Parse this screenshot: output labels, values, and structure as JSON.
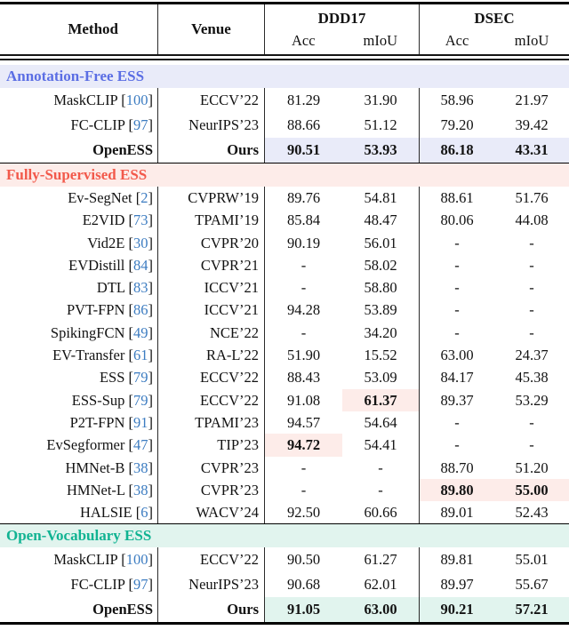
{
  "header": {
    "method": "Method",
    "venue": "Venue",
    "groups": [
      {
        "name": "DDD17",
        "sub": [
          "Acc",
          "mIoU"
        ]
      },
      {
        "name": "DSEC",
        "sub": [
          "Acc",
          "mIoU"
        ]
      }
    ]
  },
  "colors": {
    "citation_blue": "#3c7cc1",
    "rule_black": "#000000",
    "divider_gray": "#2b2b2b"
  },
  "sections": [
    {
      "id": "annotation-free-ess",
      "label": "Annotation-Free ESS",
      "text_color": "#5b6ee4",
      "band_color": "#e9ebf9",
      "highlight_color": "#e9ebf9",
      "rows": [
        {
          "method": "MaskCLIP",
          "ref": "100",
          "venue": "ECCV’22",
          "values": [
            "81.29",
            "31.90",
            "58.96",
            "21.97"
          ]
        },
        {
          "method": "FC-CLIP",
          "ref": "97",
          "venue": "NeurIPS’23",
          "values": [
            "88.66",
            "51.12",
            "79.20",
            "39.42"
          ]
        },
        {
          "method": "OpenESS",
          "ref": null,
          "venue": "Ours",
          "values": [
            "90.51",
            "53.93",
            "86.18",
            "43.31"
          ],
          "bold_row": true,
          "highlight_row": true
        }
      ]
    },
    {
      "id": "fully-supervised-ess",
      "label": "Fully-Supervised ESS",
      "text_color": "#f2594b",
      "band_color": "#fdece9",
      "highlight_color": "#fdece9",
      "rows": [
        {
          "method": "Ev-SegNet",
          "ref": "2",
          "venue": "CVPRW’19",
          "values": [
            "89.76",
            "54.81",
            "88.61",
            "51.76"
          ]
        },
        {
          "method": "E2VID",
          "ref": "73",
          "venue": "TPAMI’19",
          "values": [
            "85.84",
            "48.47",
            "80.06",
            "44.08"
          ]
        },
        {
          "method": "Vid2E",
          "ref": "30",
          "venue": "CVPR’20",
          "values": [
            "90.19",
            "56.01",
            "-",
            "-"
          ]
        },
        {
          "method": "EVDistill",
          "ref": "84",
          "venue": "CVPR’21",
          "values": [
            "-",
            "58.02",
            "-",
            "-"
          ]
        },
        {
          "method": "DTL",
          "ref": "83",
          "venue": "ICCV’21",
          "values": [
            "-",
            "58.80",
            "-",
            "-"
          ]
        },
        {
          "method": "PVT-FPN",
          "ref": "86",
          "venue": "ICCV’21",
          "values": [
            "94.28",
            "53.89",
            "-",
            "-"
          ]
        },
        {
          "method": "SpikingFCN",
          "ref": "49",
          "venue": "NCE’22",
          "values": [
            "-",
            "34.20",
            "-",
            "-"
          ]
        },
        {
          "method": "EV-Transfer",
          "ref": "61",
          "venue": "RA-L’22",
          "values": [
            "51.90",
            "15.52",
            "63.00",
            "24.37"
          ]
        },
        {
          "method": "ESS",
          "ref": "79",
          "venue": "ECCV’22",
          "values": [
            "88.43",
            "53.09",
            "84.17",
            "45.38"
          ]
        },
        {
          "method": "ESS-Sup",
          "ref": "79",
          "venue": "ECCV’22",
          "values": [
            "91.08",
            "61.37",
            "89.37",
            "53.29"
          ],
          "bold_values": [
            false,
            true,
            false,
            false
          ],
          "highlight_values": [
            false,
            true,
            false,
            false
          ]
        },
        {
          "method": "P2T-FPN",
          "ref": "91",
          "venue": "TPAMI’23",
          "values": [
            "94.57",
            "54.64",
            "-",
            "-"
          ]
        },
        {
          "method": "EvSegformer",
          "ref": "47",
          "venue": "TIP’23",
          "values": [
            "94.72",
            "54.41",
            "-",
            "-"
          ],
          "bold_values": [
            true,
            false,
            false,
            false
          ],
          "highlight_values": [
            true,
            false,
            false,
            false
          ]
        },
        {
          "method": "HMNet-B",
          "ref": "38",
          "venue": "CVPR’23",
          "values": [
            "-",
            "-",
            "88.70",
            "51.20"
          ]
        },
        {
          "method": "HMNet-L",
          "ref": "38",
          "venue": "CVPR’23",
          "values": [
            "-",
            "-",
            "89.80",
            "55.00"
          ],
          "bold_values": [
            false,
            false,
            true,
            true
          ],
          "highlight_values": [
            false,
            false,
            true,
            true
          ]
        },
        {
          "method": "HALSIE",
          "ref": "6",
          "venue": "WACV’24",
          "values": [
            "92.50",
            "60.66",
            "89.01",
            "52.43"
          ]
        }
      ]
    },
    {
      "id": "open-vocabulary-ess",
      "label": "Open-Vocabulary ESS",
      "text_color": "#10b392",
      "band_color": "#e1f4ee",
      "highlight_color": "#e1f4ee",
      "rows": [
        {
          "method": "MaskCLIP",
          "ref": "100",
          "venue": "ECCV’22",
          "values": [
            "90.50",
            "61.27",
            "89.81",
            "55.01"
          ]
        },
        {
          "method": "FC-CLIP",
          "ref": "97",
          "venue": "NeurIPS’23",
          "values": [
            "90.68",
            "62.01",
            "89.97",
            "55.67"
          ]
        },
        {
          "method": "OpenESS",
          "ref": null,
          "venue": "Ours",
          "values": [
            "91.05",
            "63.00",
            "90.21",
            "57.21"
          ],
          "bold_row": true,
          "highlight_row": true
        }
      ]
    }
  ]
}
